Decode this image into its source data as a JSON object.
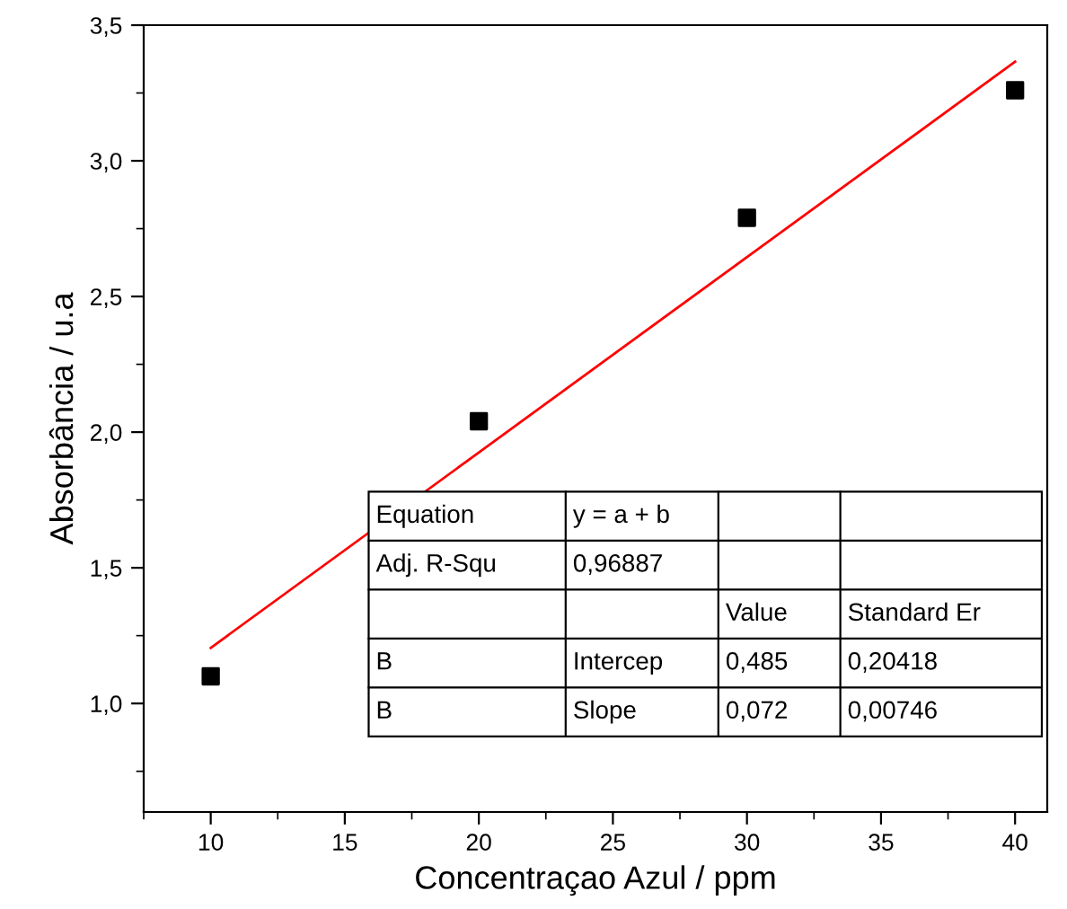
{
  "chart_data": {
    "type": "scatter",
    "xlabel": "Concentraçao Azul / ppm",
    "ylabel": "Absorbância / u.a",
    "x": [
      10,
      20,
      30,
      40
    ],
    "series": [
      {
        "color": "#000000",
        "marker": "square",
        "values": [
          1.1,
          2.04,
          2.79,
          3.26
        ]
      },
      {
        "type": "line",
        "color": "#ff0000",
        "marker": "none",
        "line_style": "solid",
        "x": [
          10,
          40
        ],
        "values": [
          1.205,
          3.365
        ]
      }
    ],
    "xlim": [
      7.5,
      41.2
    ],
    "ylim": [
      0.6,
      3.5
    ],
    "xticks": [
      10,
      15,
      20,
      25,
      30,
      35,
      40
    ],
    "yticks": [
      {
        "value": 1.0,
        "label": "1,0"
      },
      {
        "value": 1.5,
        "label": "1,5"
      },
      {
        "value": 2.0,
        "label": "2,0"
      },
      {
        "value": 2.5,
        "label": "2,5"
      },
      {
        "value": 3.0,
        "label": "3,0"
      },
      {
        "value": 3.5,
        "label": "3,5"
      }
    ],
    "grid": false,
    "legend": false,
    "annotations": [
      "Equation",
      "y = a + b",
      "Adj. R-Squ",
      "0,96887",
      "Value",
      "Standard Er",
      "B",
      "Intercep",
      "0,485",
      "0,20418",
      "B",
      "Slope",
      "0,072",
      "0,00746"
    ]
  }
}
